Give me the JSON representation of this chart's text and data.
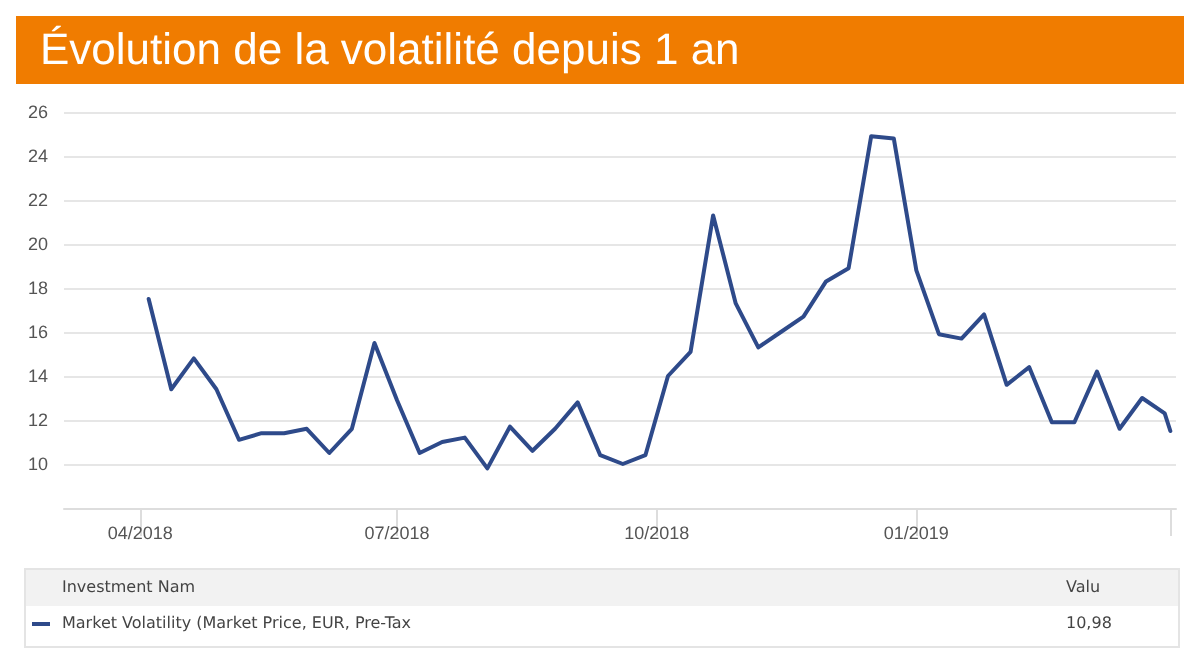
{
  "chart_data": {
    "type": "line",
    "title": "Évolution de la volatilité depuis 1 an",
    "x": [
      "2018-04-04",
      "2018-04-12",
      "2018-04-20",
      "2018-04-28",
      "2018-05-06",
      "2018-05-14",
      "2018-05-22",
      "2018-05-30",
      "2018-06-07",
      "2018-06-15",
      "2018-06-23",
      "2018-07-01",
      "2018-07-09",
      "2018-07-17",
      "2018-07-25",
      "2018-08-02",
      "2018-08-10",
      "2018-08-18",
      "2018-08-26",
      "2018-09-03",
      "2018-09-11",
      "2018-09-19",
      "2018-09-27",
      "2018-10-05",
      "2018-10-13",
      "2018-10-21",
      "2018-10-29",
      "2018-11-06",
      "2018-11-14",
      "2018-11-22",
      "2018-11-30",
      "2018-12-08",
      "2018-12-16",
      "2018-12-24",
      "2019-01-01",
      "2019-01-09",
      "2019-01-17",
      "2019-01-25",
      "2019-02-02",
      "2019-02-10",
      "2019-02-18",
      "2019-02-26",
      "2019-03-06",
      "2019-03-14",
      "2019-03-22",
      "2019-03-30",
      "2019-04-01"
    ],
    "series": [
      {
        "name": "Market Volatility (Market Price, EUR, Pre-Tax",
        "color": "#2e4a8a",
        "values": [
          17.5,
          13.4,
          14.8,
          13.4,
          11.1,
          11.4,
          11.4,
          11.6,
          10.5,
          11.6,
          15.5,
          12.9,
          10.5,
          11.0,
          11.2,
          9.8,
          11.7,
          10.6,
          11.6,
          12.8,
          10.4,
          10.0,
          10.4,
          14.0,
          15.1,
          21.3,
          17.3,
          15.3,
          16.0,
          16.7,
          18.3,
          18.9,
          24.9,
          24.8,
          18.8,
          15.9,
          15.7,
          16.8,
          13.6,
          14.4,
          11.9,
          11.9,
          14.2,
          11.6,
          13.0,
          12.3,
          11.5
        ]
      }
    ],
    "xlim": [
      "2018-03-05",
      "2019-04-03"
    ],
    "xticks": [
      {
        "value": "2018-04-01",
        "label": "04/2018"
      },
      {
        "value": "2018-07-01",
        "label": "07/2018"
      },
      {
        "value": "2018-10-01",
        "label": "10/2018"
      },
      {
        "value": "2019-01-01",
        "label": "01/2019"
      },
      {
        "value": "2019-04-01",
        "label": null
      }
    ],
    "ylim": [
      8,
      26
    ],
    "yticks": [
      10,
      12,
      14,
      16,
      18,
      20,
      22,
      24,
      26
    ],
    "grid": "y",
    "legend": "bottom",
    "marker": "none",
    "line_style": "solid",
    "annotations": [
      "Investment Nam",
      "Valu",
      "10,98"
    ]
  }
}
